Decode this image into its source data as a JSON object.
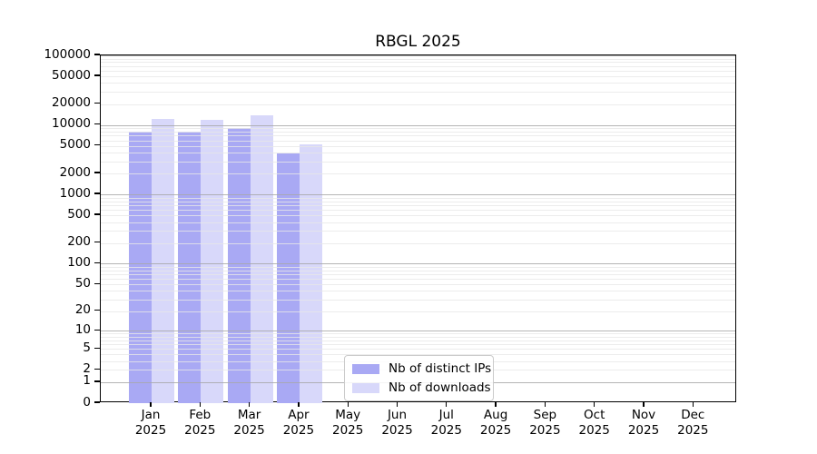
{
  "chart_data": {
    "type": "bar",
    "title": "RBGL 2025",
    "categories": [
      "Jan 2025",
      "Feb 2025",
      "Mar 2025",
      "Apr 2025",
      "May 2025",
      "Jun 2025",
      "Jul 2025",
      "Aug 2025",
      "Sep 2025",
      "Oct 2025",
      "Nov 2025",
      "Dec 2025"
    ],
    "series": [
      {
        "name": "Nb of distinct IPs",
        "color": "#a9a9f4",
        "values": [
          7900,
          7900,
          9000,
          3900,
          null,
          null,
          null,
          null,
          null,
          null,
          null,
          null
        ]
      },
      {
        "name": "Nb of downloads",
        "color": "#d8d8fa",
        "values": [
          12200,
          11700,
          13900,
          5300,
          null,
          null,
          null,
          null,
          null,
          null,
          null,
          null
        ]
      }
    ],
    "yscale": "log1p",
    "ylim": [
      0,
      100000
    ],
    "yticks": [
      100000,
      50000,
      20000,
      10000,
      5000,
      2000,
      1000,
      500,
      200,
      100,
      50,
      20,
      10,
      5,
      2,
      1,
      0
    ],
    "grid": "horizontal major and minor log gridlines",
    "legend_position": "inside bottom-center"
  }
}
